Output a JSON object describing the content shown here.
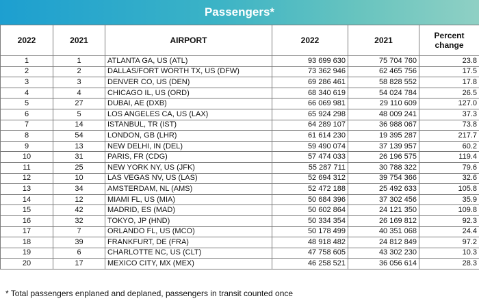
{
  "title": "Passengers*",
  "columns": [
    "2022",
    "2021",
    "AIRPORT",
    "2022",
    "2021",
    "Percent change"
  ],
  "rows": [
    [
      "1",
      "1",
      "ATLANTA GA, US (ATL)",
      "93 699 630",
      "75 704 760",
      "23.8"
    ],
    [
      "2",
      "2",
      "DALLAS/FORT WORTH TX, US (DFW)",
      "73 362 946",
      "62 465 756",
      "17.5"
    ],
    [
      "3",
      "3",
      "DENVER CO, US (DEN)",
      "69 286 461",
      "58 828 552",
      "17.8"
    ],
    [
      "4",
      "4",
      "CHICAGO IL, US (ORD)",
      "68 340 619",
      "54 024 784",
      "26.5"
    ],
    [
      "5",
      "27",
      "DUBAI, AE (DXB)",
      "66 069 981",
      "29 110 609",
      "127.0"
    ],
    [
      "6",
      "5",
      "LOS ANGELES CA, US (LAX)",
      "65 924 298",
      "48 009 241",
      "37.3"
    ],
    [
      "7",
      "14",
      "ISTANBUL, TR (IST)",
      "64 289 107",
      "36 988 067",
      "73.8"
    ],
    [
      "8",
      "54",
      "LONDON, GB (LHR)",
      "61 614 230",
      "19 395 287",
      "217.7"
    ],
    [
      "9",
      "13",
      "NEW DELHI, IN (DEL)",
      "59 490 074",
      "37 139 957",
      "60.2"
    ],
    [
      "10",
      "31",
      "PARIS, FR (CDG)",
      "57 474 033",
      "26 196 575",
      "119.4"
    ],
    [
      "11",
      "25",
      "NEW YORK NY, US (JFK)",
      "55 287 711",
      "30 788 322",
      "79.6"
    ],
    [
      "12",
      "10",
      "LAS VEGAS NV, US (LAS)",
      "52 694 312",
      "39 754 366",
      "32.6"
    ],
    [
      "13",
      "34",
      "AMSTERDAM, NL (AMS)",
      "52 472 188",
      "25 492 633",
      "105.8"
    ],
    [
      "14",
      "12",
      "MIAMI FL, US (MIA)",
      "50 684 396",
      "37 302 456",
      "35.9"
    ],
    [
      "15",
      "42",
      "MADRID, ES (MAD)",
      "50 602 864",
      "24 121 350",
      "109.8"
    ],
    [
      "16",
      "32",
      "TOKYO, JP (HND)",
      "50 334 354",
      "26 169 812",
      "92.3"
    ],
    [
      "17",
      "7",
      "ORLANDO FL, US (MCO)",
      "50 178 499",
      "40 351 068",
      "24.4"
    ],
    [
      "18",
      "39",
      "FRANKFURT, DE (FRA)",
      "48 918 482",
      "24 812 849",
      "97.2"
    ],
    [
      "19",
      "6",
      "CHARLOTTE NC, US (CLT)",
      "47 758 605",
      "43 302 230",
      "10.3"
    ],
    [
      "20",
      "17",
      "MEXICO CITY, MX (MEX)",
      "46 258 521",
      "36 056 614",
      "28.3"
    ]
  ],
  "footnote": "* Total passengers enplaned and deplaned, passengers in transit counted once",
  "colors": {
    "title_gradient_start": "#1d9fd0",
    "title_gradient_end": "#8fd0c4",
    "title_text": "#ffffff",
    "grid_line": "#7a7a7a"
  }
}
